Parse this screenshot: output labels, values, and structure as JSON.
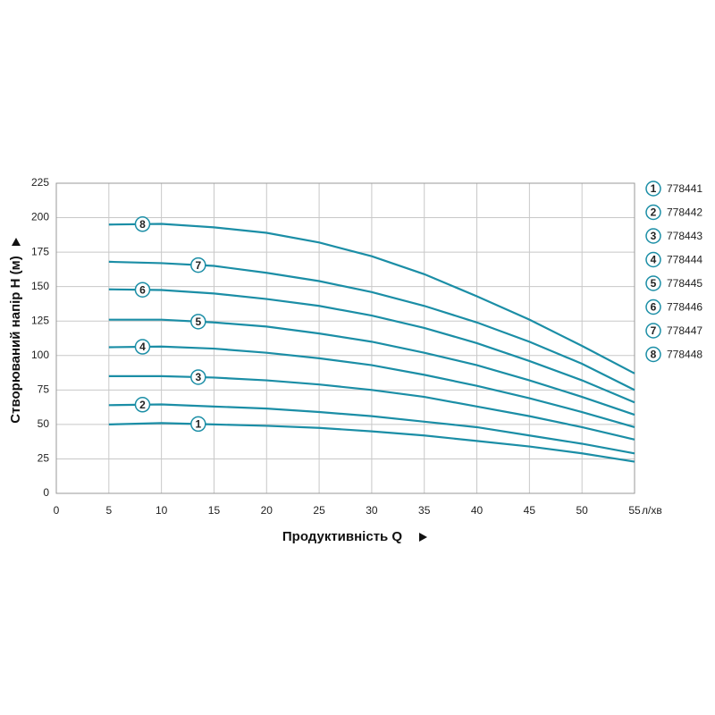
{
  "chart_data": {
    "type": "line",
    "x_label": "Продуктивність  Q",
    "y_label": "Створюваний напір H (м)",
    "x_unit": "л/хв",
    "x": [
      5,
      10,
      15,
      20,
      25,
      30,
      35,
      40,
      45,
      50,
      55
    ],
    "xlim": [
      0,
      55
    ],
    "xticks": [
      0,
      5,
      10,
      15,
      20,
      25,
      30,
      35,
      40,
      45,
      50,
      55
    ],
    "ylim": [
      0,
      225
    ],
    "yticks": [
      0,
      25,
      50,
      75,
      100,
      125,
      150,
      175,
      200,
      225
    ],
    "grid": true,
    "series": [
      {
        "name": "778441",
        "number": "1",
        "color": "#1b8ea6",
        "values": [
          50,
          51,
          50,
          49,
          47.5,
          45,
          42,
          38,
          34,
          29,
          23
        ]
      },
      {
        "name": "778442",
        "number": "2",
        "color": "#1b8ea6",
        "values": [
          64,
          64.5,
          63,
          61.5,
          59,
          56,
          52,
          48,
          42,
          36,
          29
        ]
      },
      {
        "name": "778443",
        "number": "3",
        "color": "#1b8ea6",
        "values": [
          85,
          85,
          84,
          82,
          79,
          75,
          70,
          63,
          56,
          48,
          39
        ]
      },
      {
        "name": "778444",
        "number": "4",
        "color": "#1b8ea6",
        "values": [
          106,
          106.5,
          105,
          102,
          98,
          93,
          86,
          78,
          69,
          59,
          48
        ]
      },
      {
        "name": "778445",
        "number": "5",
        "color": "#1b8ea6",
        "values": [
          126,
          126,
          124,
          121,
          116,
          110,
          102,
          93,
          82,
          70,
          57
        ]
      },
      {
        "name": "778446",
        "number": "6",
        "color": "#1b8ea6",
        "values": [
          148,
          147.5,
          145,
          141,
          136,
          129,
          120,
          109,
          96,
          82,
          66
        ]
      },
      {
        "name": "778447",
        "number": "7",
        "color": "#1b8ea6",
        "values": [
          168,
          167,
          165,
          160,
          154,
          146,
          136,
          124,
          110,
          94,
          75
        ]
      },
      {
        "name": "778448",
        "number": "8",
        "color": "#1b8ea6",
        "values": [
          195,
          195.5,
          193,
          189,
          182,
          172,
          159,
          143,
          126,
          107,
          87
        ]
      }
    ]
  }
}
